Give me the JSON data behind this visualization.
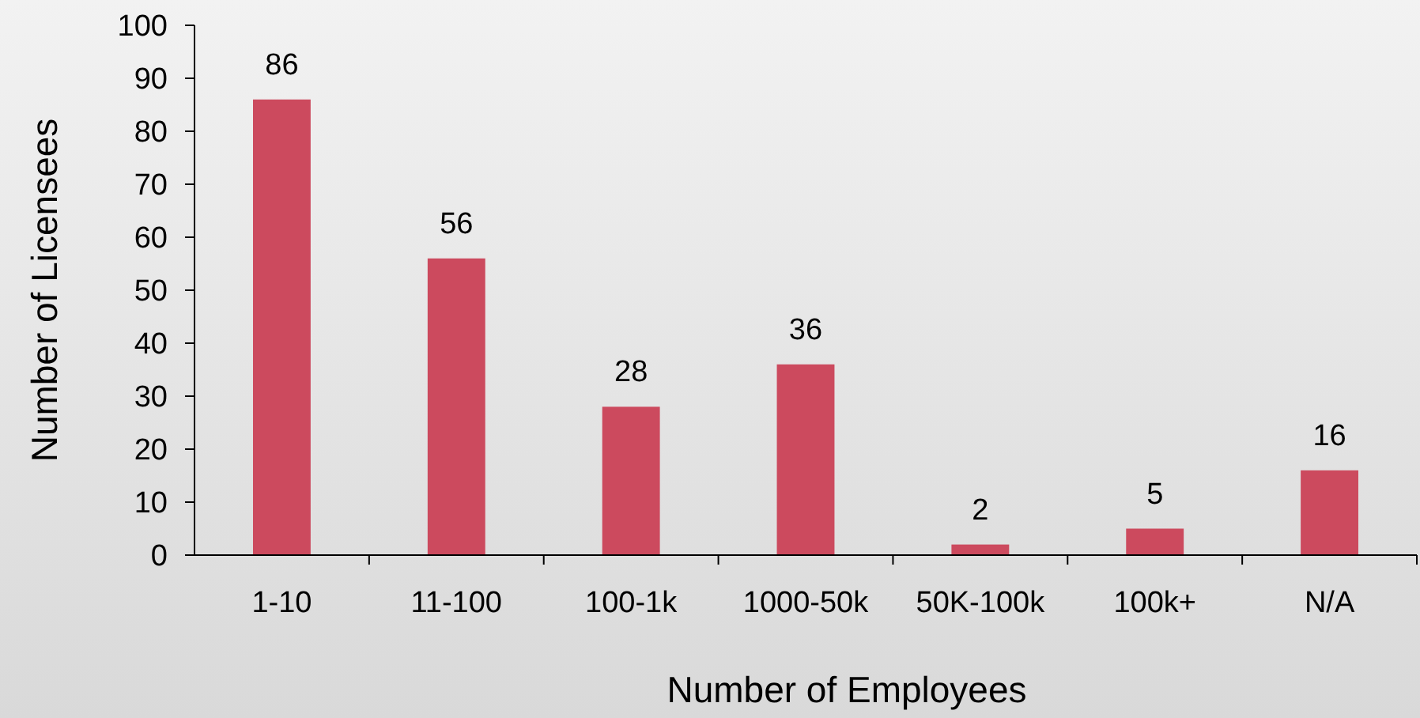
{
  "chart_data": {
    "type": "bar",
    "xlabel": "Number of Employees",
    "ylabel": "Number of Licensees",
    "categories": [
      "1-10",
      "11-100",
      "100-1k",
      "1000-50k",
      "50K-100k",
      "100k+",
      "N/A"
    ],
    "values": [
      86,
      56,
      28,
      36,
      2,
      5,
      16
    ],
    "color": "#cc4a5e",
    "ylim": [
      0,
      100
    ],
    "yticks": [
      0,
      10,
      20,
      30,
      40,
      50,
      60,
      70,
      80,
      90,
      100
    ],
    "data_labels": true
  }
}
